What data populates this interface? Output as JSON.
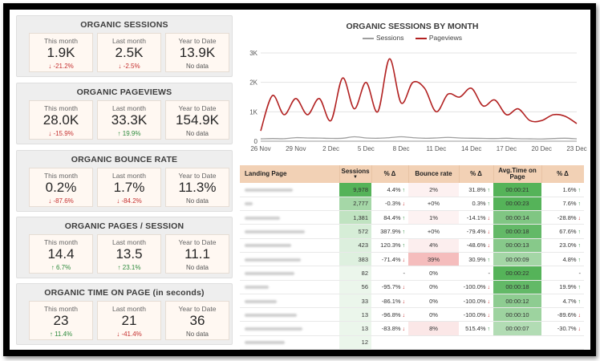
{
  "panels": [
    {
      "title": "ORGANIC SESSIONS",
      "cards": [
        {
          "label": "This month",
          "value": "1.9K",
          "delta": "-21.2%",
          "trend": "neg"
        },
        {
          "label": "Last month",
          "value": "2.5K",
          "delta": "-2.5%",
          "trend": "neg"
        },
        {
          "label": "Year to Date",
          "value": "13.9K",
          "delta": "No data",
          "trend": "nodata"
        }
      ]
    },
    {
      "title": "ORGANIC PAGEVIEWS",
      "cards": [
        {
          "label": "This month",
          "value": "28.0K",
          "delta": "-15.9%",
          "trend": "neg"
        },
        {
          "label": "Last month",
          "value": "33.3K",
          "delta": "19.9%",
          "trend": "pos"
        },
        {
          "label": "Year to Date",
          "value": "154.9K",
          "delta": "No data",
          "trend": "nodata"
        }
      ]
    },
    {
      "title": "ORGANIC BOUNCE RATE",
      "cards": [
        {
          "label": "This month",
          "value": "0.2%",
          "delta": "-87.6%",
          "trend": "neg"
        },
        {
          "label": "Last month",
          "value": "1.7%",
          "delta": "-84.2%",
          "trend": "neg"
        },
        {
          "label": "Year to Date",
          "value": "11.3%",
          "delta": "No data",
          "trend": "nodata"
        }
      ]
    },
    {
      "title": "ORGANIC PAGES / SESSION",
      "cards": [
        {
          "label": "This month",
          "value": "14.4",
          "delta": "6.7%",
          "trend": "pos"
        },
        {
          "label": "Last month",
          "value": "13.5",
          "delta": "23.1%",
          "trend": "pos"
        },
        {
          "label": "Year to Date",
          "value": "11.1",
          "delta": "No data",
          "trend": "nodata"
        }
      ]
    },
    {
      "title": "ORGANIC TIME ON PAGE (in seconds)",
      "cards": [
        {
          "label": "This month",
          "value": "23",
          "delta": "11.4%",
          "trend": "pos"
        },
        {
          "label": "Last month",
          "value": "21",
          "delta": "-41.4%",
          "trend": "neg"
        },
        {
          "label": "Year to Date",
          "value": "36",
          "delta": "No data",
          "trend": "nodata"
        }
      ]
    }
  ],
  "chart_data": {
    "type": "line",
    "title": "ORGANIC SESSIONS BY MONTH",
    "x_ticks": [
      "26 Nov",
      "29 Nov",
      "2 Dec",
      "5 Dec",
      "8 Dec",
      "11 Dec",
      "14 Dec",
      "17 Dec",
      "20 Dec",
      "23 Dec"
    ],
    "y_ticks": [
      "0",
      "1K",
      "2K",
      "3K"
    ],
    "ylim": [
      0,
      3000
    ],
    "x_count": 28,
    "series": [
      {
        "name": "Sessions",
        "color": "#9e9e9e",
        "values": [
          80,
          90,
          85,
          120,
          110,
          105,
          95,
          100,
          150,
          110,
          100,
          120,
          150,
          120,
          100,
          110,
          130,
          110,
          100,
          95,
          90,
          100,
          85,
          80,
          75,
          90,
          100,
          80
        ]
      },
      {
        "name": "Pageviews",
        "color": "#b22222",
        "values": [
          350,
          1550,
          900,
          1450,
          900,
          1450,
          700,
          2150,
          1100,
          2000,
          1000,
          2800,
          1300,
          2000,
          1800,
          1000,
          1600,
          1500,
          1800,
          1200,
          1400,
          900,
          1100,
          700,
          700,
          900,
          850,
          600
        ]
      }
    ],
    "grid": true,
    "legend": "top-center"
  },
  "table": {
    "headers": [
      "Landing Page",
      "Sessions",
      "% Δ",
      "Bounce rate",
      "% Δ",
      "Avg.Time on Page",
      "% Δ"
    ],
    "sort_icon": "▼",
    "rows": [
      {
        "w": 60,
        "sessions": "9,978",
        "s_delta": "4.4%",
        "s_dir": "up",
        "bounce": "2%",
        "b_delta": "31.8%",
        "b_dir": "up",
        "time": "00:00:21",
        "t_delta": "1.6%",
        "t_dir": "up"
      },
      {
        "w": 10,
        "sessions": "2,777",
        "s_delta": "-0.3%",
        "s_dir": "down",
        "bounce": "+0%",
        "b_delta": "0.3%",
        "b_dir": "up",
        "time": "00:00:23",
        "t_delta": "7.6%",
        "t_dir": "up"
      },
      {
        "w": 44,
        "sessions": "1,381",
        "s_delta": "84.4%",
        "s_dir": "up",
        "bounce": "1%",
        "b_delta": "-14.1%",
        "b_dir": "down",
        "time": "00:00:14",
        "t_delta": "-28.8%",
        "t_dir": "down"
      },
      {
        "w": 75,
        "sessions": "572",
        "s_delta": "387.9%",
        "s_dir": "up",
        "bounce": "+0%",
        "b_delta": "-79.4%",
        "b_dir": "down",
        "time": "00:00:18",
        "t_delta": "67.6%",
        "t_dir": "up"
      },
      {
        "w": 58,
        "sessions": "423",
        "s_delta": "120.3%",
        "s_dir": "up",
        "bounce": "4%",
        "b_delta": "-48.6%",
        "b_dir": "down",
        "time": "00:00:13",
        "t_delta": "23.0%",
        "t_dir": "up"
      },
      {
        "w": 70,
        "sessions": "383",
        "s_delta": "-71.4%",
        "s_dir": "down",
        "bounce": "39%",
        "b_delta": "30.9%",
        "b_dir": "up",
        "time": "00:00:09",
        "t_delta": "4.8%",
        "t_dir": "up"
      },
      {
        "w": 62,
        "sessions": "82",
        "s_delta": "-",
        "s_dir": "",
        "bounce": "0%",
        "b_delta": "-",
        "b_dir": "",
        "time": "00:00:22",
        "t_delta": "-",
        "t_dir": ""
      },
      {
        "w": 30,
        "sessions": "56",
        "s_delta": "-95.7%",
        "s_dir": "down",
        "bounce": "0%",
        "b_delta": "-100.0%",
        "b_dir": "down",
        "time": "00:00:18",
        "t_delta": "19.9%",
        "t_dir": "up"
      },
      {
        "w": 40,
        "sessions": "33",
        "s_delta": "-86.1%",
        "s_dir": "down",
        "bounce": "0%",
        "b_delta": "-100.0%",
        "b_dir": "down",
        "time": "00:00:12",
        "t_delta": "4.7%",
        "t_dir": "up"
      },
      {
        "w": 65,
        "sessions": "13",
        "s_delta": "-96.8%",
        "s_dir": "down",
        "bounce": "0%",
        "b_delta": "-100.0%",
        "b_dir": "down",
        "time": "00:00:10",
        "t_delta": "-89.6%",
        "t_dir": "down"
      },
      {
        "w": 72,
        "sessions": "13",
        "s_delta": "-83.8%",
        "s_dir": "down",
        "bounce": "8%",
        "b_delta": "515.4%",
        "b_dir": "up",
        "time": "00:00:07",
        "t_delta": "-30.7%",
        "t_dir": "down"
      },
      {
        "w": 50,
        "sessions": "12",
        "s_delta": "",
        "s_dir": "",
        "bounce": "",
        "b_delta": "",
        "b_dir": "",
        "time": "",
        "t_delta": "",
        "t_dir": ""
      }
    ]
  },
  "icons": {
    "up": "arrow-up-icon",
    "down": "arrow-down-icon"
  },
  "colors": {
    "negative": "#c53030",
    "positive": "#2e8b3d",
    "header": "#f2d1b5",
    "heat_green": "#4caf50",
    "heat_red": "#f4b6b6"
  }
}
